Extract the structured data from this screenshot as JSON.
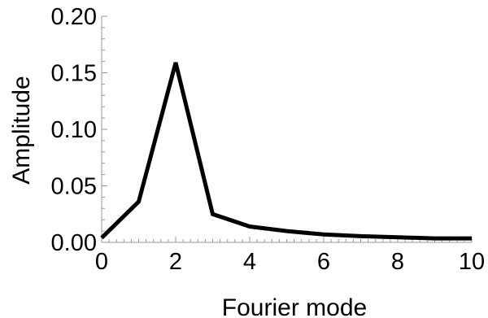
{
  "chart_data": {
    "type": "line",
    "title": "",
    "xlabel": "Fourier mode",
    "ylabel": "Amplitude",
    "xlim": [
      0,
      10
    ],
    "ylim": [
      0,
      0.2
    ],
    "x_ticks": [
      0,
      2,
      4,
      6,
      8,
      10
    ],
    "x_tick_labels": [
      "0",
      "2",
      "4",
      "6",
      "8",
      "10"
    ],
    "y_ticks": [
      0,
      0.05,
      0.1,
      0.15,
      0.2
    ],
    "y_tick_labels": [
      "0.00",
      "0.05",
      "0.10",
      "0.15",
      "0.20"
    ],
    "grid": false,
    "legend": "none",
    "line_color": "#000000",
    "x": [
      0,
      1,
      2,
      3,
      4,
      5,
      6,
      7,
      8,
      9,
      10
    ],
    "series": [
      {
        "values": [
          0.004,
          0.036,
          0.159,
          0.025,
          0.014,
          0.01,
          0.007,
          0.0055,
          0.0045,
          0.0035,
          0.0035
        ]
      }
    ]
  }
}
